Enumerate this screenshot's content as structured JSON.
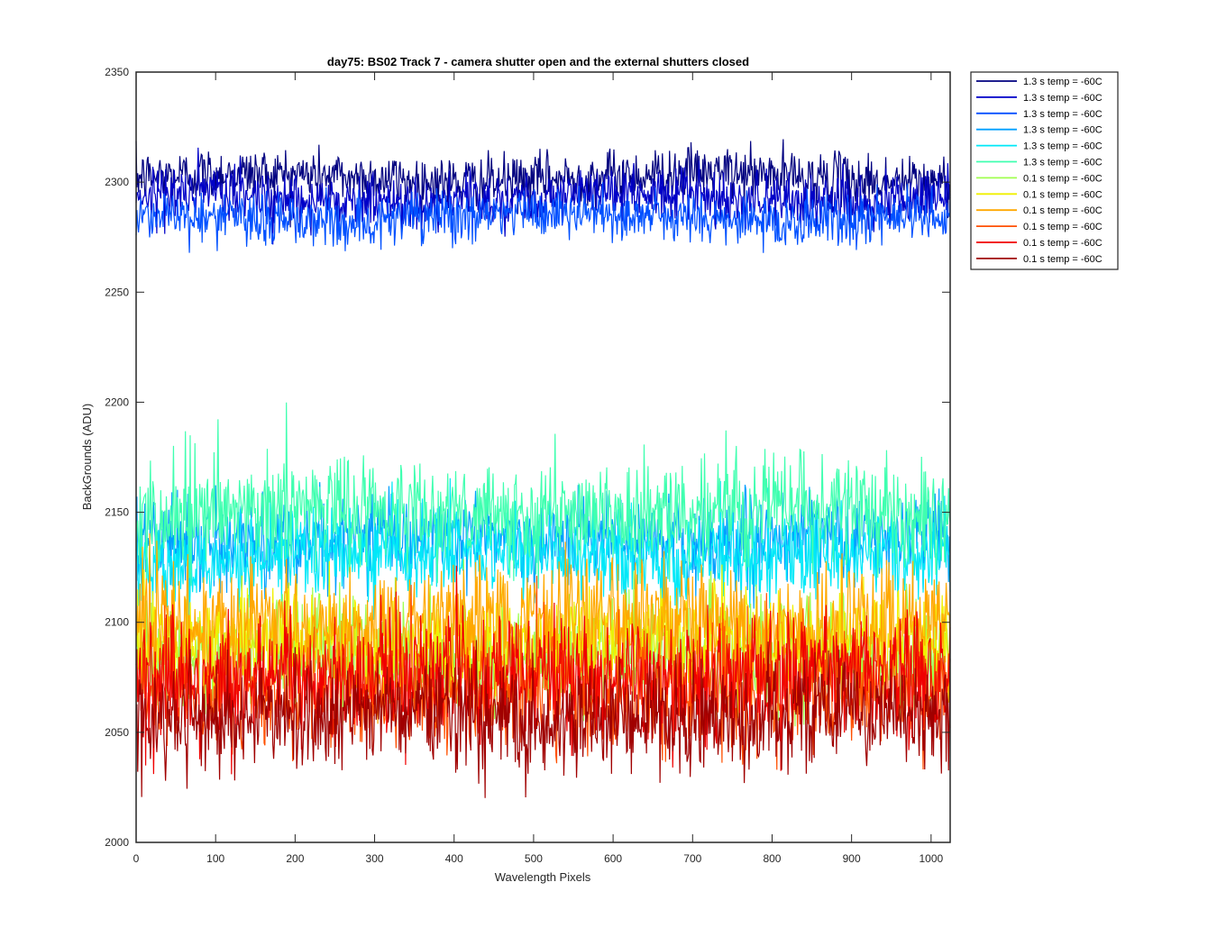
{
  "chart_data": {
    "type": "line",
    "title": "day75: BS02  Track 7 - camera shutter open and the external shutters closed",
    "xlabel": "Wavelength Pixels",
    "ylabel": "BackGrounds (ADU)",
    "xlim": [
      0,
      1024
    ],
    "ylim": [
      2000,
      2350
    ],
    "xticks": [
      "0",
      "100",
      "200",
      "300",
      "400",
      "500",
      "600",
      "700",
      "800",
      "900",
      "1000"
    ],
    "yticks": [
      "2000",
      "2050",
      "2100",
      "2150",
      "2200",
      "2250",
      "2300",
      "2350"
    ],
    "grid": false,
    "legend_position": "outside-top-right",
    "series": [
      {
        "name": "1.3 s temp = -60C",
        "color": "#000080",
        "mean": 2302,
        "noise": 6,
        "x_range": [
          0,
          1024
        ]
      },
      {
        "name": "1.3 s temp = -60C",
        "color": "#0000C8",
        "mean": 2293,
        "noise": 6,
        "x_range": [
          0,
          1024
        ]
      },
      {
        "name": "1.3 s temp = -60C",
        "color": "#0050FF",
        "mean": 2284,
        "noise": 6,
        "x_range": [
          0,
          1024
        ]
      },
      {
        "name": "1.3 s temp = -60C",
        "color": "#00A0FF",
        "mean": 2138,
        "noise": 10,
        "x_range": [
          0,
          1024
        ]
      },
      {
        "name": "1.3 s temp = -60C",
        "color": "#00E8F8",
        "mean": 2130,
        "noise": 10,
        "x_range": [
          0,
          1024
        ]
      },
      {
        "name": "1.3 s temp = -60C",
        "color": "#40FFB0",
        "mean": 2150,
        "noise": 12,
        "x_range": [
          0,
          1024
        ]
      },
      {
        "name": "0.1 s temp = -60C",
        "color": "#A0FF50",
        "mean": 2085,
        "noise": 12,
        "x_range": [
          0,
          1024
        ]
      },
      {
        "name": "0.1 s temp = -60C",
        "color": "#F0F000",
        "mean": 2090,
        "noise": 12,
        "x_range": [
          0,
          1024
        ]
      },
      {
        "name": "0.1 s temp = -60C",
        "color": "#FFA800",
        "mean": 2100,
        "noise": 13,
        "x_range": [
          0,
          1024
        ]
      },
      {
        "name": "0.1 s temp = -60C",
        "color": "#FF5000",
        "mean": 2070,
        "noise": 14,
        "x_range": [
          0,
          1024
        ]
      },
      {
        "name": "0.1 s temp = -60C",
        "color": "#F00000",
        "mean": 2075,
        "noise": 14,
        "x_range": [
          0,
          1024
        ]
      },
      {
        "name": "0.1 s temp = -60C",
        "color": "#A00000",
        "mean": 2058,
        "noise": 12,
        "x_range": [
          0,
          1024
        ]
      }
    ]
  }
}
